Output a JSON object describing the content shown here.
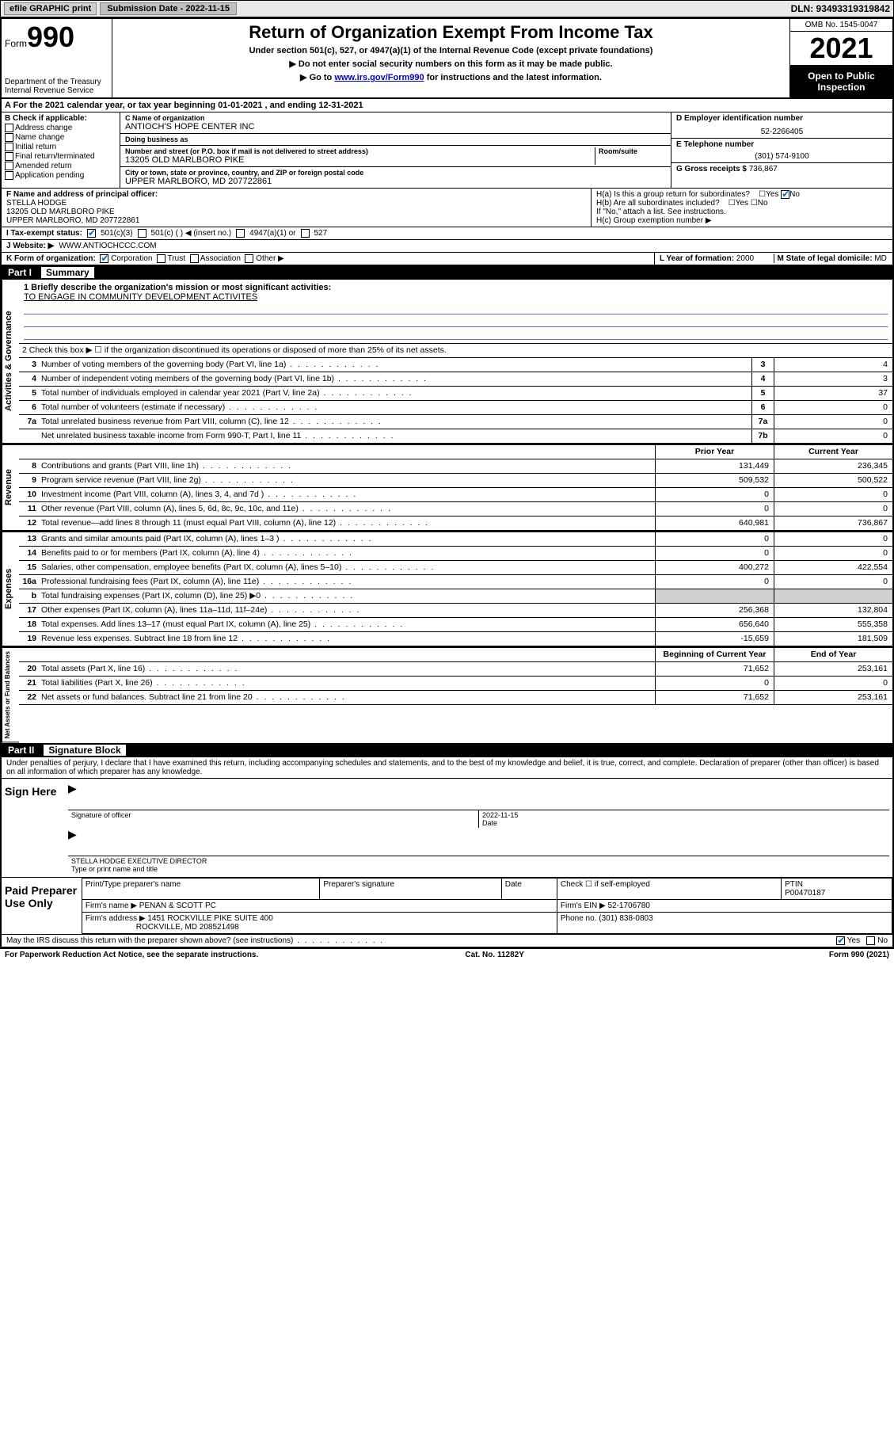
{
  "topbar": {
    "efile": "efile GRAPHIC print",
    "subdate_label": "Submission Date - 2022-11-15",
    "dln": "DLN: 93493319319842"
  },
  "header": {
    "form_label": "Form",
    "form_no": "990",
    "dept": "Department of the Treasury Internal Revenue Service",
    "title": "Return of Organization Exempt From Income Tax",
    "sub1": "Under section 501(c), 527, or 4947(a)(1) of the Internal Revenue Code (except private foundations)",
    "sub2": "▶ Do not enter social security numbers on this form as it may be made public.",
    "sub3_pre": "▶ Go to ",
    "sub3_link": "www.irs.gov/Form990",
    "sub3_post": " for instructions and the latest information.",
    "omb": "OMB No. 1545-0047",
    "year": "2021",
    "open": "Open to Public Inspection"
  },
  "row_a": "A For the 2021 calendar year, or tax year beginning 01-01-2021    , and ending 12-31-2021",
  "box_b": {
    "label": "B Check if applicable:",
    "items": [
      "Address change",
      "Name change",
      "Initial return",
      "Final return/terminated",
      "Amended return",
      "Application pending"
    ]
  },
  "box_c": {
    "name_lbl": "C Name of organization",
    "name": "ANTIOCH'S HOPE CENTER INC",
    "dba_lbl": "Doing business as",
    "dba": "",
    "addr_lbl": "Number and street (or P.O. box if mail is not delivered to street address)",
    "room_lbl": "Room/suite",
    "addr": "13205 OLD MARLBORO PIKE",
    "city_lbl": "City or town, state or province, country, and ZIP or foreign postal code",
    "city": "UPPER MARLBORO, MD  207722861"
  },
  "box_d": {
    "ein_lbl": "D Employer identification number",
    "ein": "52-2266405",
    "tel_lbl": "E Telephone number",
    "tel": "(301) 574-9100",
    "gross_lbl": "G Gross receipts $",
    "gross": "736,867"
  },
  "box_f": {
    "lbl": "F Name and address of principal officer:",
    "name": "STELLA HODGE",
    "addr1": "13205 OLD MARLBORO PIKE",
    "addr2": "UPPER MARLBORO, MD  207722861"
  },
  "box_h": {
    "a": "H(a)  Is this a group return for subordinates?",
    "b": "H(b)  Are all subordinates included?",
    "note": "If \"No,\" attach a list. See instructions.",
    "c": "H(c)  Group exemption number ▶"
  },
  "row_i": {
    "lbl": "I   Tax-exempt status:",
    "c3": "501(c)(3)",
    "c": "501(c) (     ) ◀ (insert no.)",
    "a1": "4947(a)(1) or",
    "s527": "527"
  },
  "row_j": {
    "lbl": "J   Website: ▶",
    "val": "WWW.ANTIOCHCCC.COM"
  },
  "row_k": {
    "lbl": "K Form of organization:",
    "corp": "Corporation",
    "trust": "Trust",
    "assoc": "Association",
    "other": "Other ▶"
  },
  "row_lm": {
    "l_lbl": "L Year of formation:",
    "l_val": "2000",
    "m_lbl": "M State of legal domicile:",
    "m_val": "MD"
  },
  "part1": {
    "num": "Part I",
    "title": "Summary"
  },
  "mission": {
    "q": "1   Briefly describe the organization's mission or most significant activities:",
    "a": "TO ENGAGE IN COMMUNITY DEVELOPMENT ACTIVITES"
  },
  "line2": "2   Check this box ▶ ☐  if the organization discontinued its operations or disposed of more than 25% of its net assets.",
  "gov_rows": [
    {
      "n": "3",
      "d": "Number of voting members of the governing body (Part VI, line 1a)",
      "box": "3",
      "v": "4"
    },
    {
      "n": "4",
      "d": "Number of independent voting members of the governing body (Part VI, line 1b)",
      "box": "4",
      "v": "3"
    },
    {
      "n": "5",
      "d": "Total number of individuals employed in calendar year 2021 (Part V, line 2a)",
      "box": "5",
      "v": "37"
    },
    {
      "n": "6",
      "d": "Total number of volunteers (estimate if necessary)",
      "box": "6",
      "v": "0"
    },
    {
      "n": "7a",
      "d": "Total unrelated business revenue from Part VIII, column (C), line 12",
      "box": "7a",
      "v": "0"
    },
    {
      "n": "",
      "d": "Net unrelated business taxable income from Form 990-T, Part I, line 11",
      "box": "7b",
      "v": "0"
    }
  ],
  "col_hdrs": {
    "prior": "Prior Year",
    "current": "Current Year",
    "boy": "Beginning of Current Year",
    "eoy": "End of Year"
  },
  "rev_rows": [
    {
      "n": "8",
      "d": "Contributions and grants (Part VIII, line 1h)",
      "p": "131,449",
      "c": "236,345"
    },
    {
      "n": "9",
      "d": "Program service revenue (Part VIII, line 2g)",
      "p": "509,532",
      "c": "500,522"
    },
    {
      "n": "10",
      "d": "Investment income (Part VIII, column (A), lines 3, 4, and 7d )",
      "p": "0",
      "c": "0"
    },
    {
      "n": "11",
      "d": "Other revenue (Part VIII, column (A), lines 5, 6d, 8c, 9c, 10c, and 11e)",
      "p": "0",
      "c": "0"
    },
    {
      "n": "12",
      "d": "Total revenue—add lines 8 through 11 (must equal Part VIII, column (A), line 12)",
      "p": "640,981",
      "c": "736,867"
    }
  ],
  "exp_rows": [
    {
      "n": "13",
      "d": "Grants and similar amounts paid (Part IX, column (A), lines 1–3 )",
      "p": "0",
      "c": "0"
    },
    {
      "n": "14",
      "d": "Benefits paid to or for members (Part IX, column (A), line 4)",
      "p": "0",
      "c": "0"
    },
    {
      "n": "15",
      "d": "Salaries, other compensation, employee benefits (Part IX, column (A), lines 5–10)",
      "p": "400,272",
      "c": "422,554"
    },
    {
      "n": "16a",
      "d": "Professional fundraising fees (Part IX, column (A), line 11e)",
      "p": "0",
      "c": "0"
    },
    {
      "n": "b",
      "d": "Total fundraising expenses (Part IX, column (D), line 25) ▶0",
      "p": "",
      "c": "",
      "shade": true
    },
    {
      "n": "17",
      "d": "Other expenses (Part IX, column (A), lines 11a–11d, 11f–24e)",
      "p": "256,368",
      "c": "132,804"
    },
    {
      "n": "18",
      "d": "Total expenses. Add lines 13–17 (must equal Part IX, column (A), line 25)",
      "p": "656,640",
      "c": "555,358"
    },
    {
      "n": "19",
      "d": "Revenue less expenses. Subtract line 18 from line 12",
      "p": "-15,659",
      "c": "181,509"
    }
  ],
  "na_rows": [
    {
      "n": "20",
      "d": "Total assets (Part X, line 16)",
      "p": "71,652",
      "c": "253,161"
    },
    {
      "n": "21",
      "d": "Total liabilities (Part X, line 26)",
      "p": "0",
      "c": "0"
    },
    {
      "n": "22",
      "d": "Net assets or fund balances. Subtract line 21 from line 20",
      "p": "71,652",
      "c": "253,161"
    }
  ],
  "part2": {
    "num": "Part II",
    "title": "Signature Block"
  },
  "penalties": "Under penalties of perjury, I declare that I have examined this return, including accompanying schedules and statements, and to the best of my knowledge and belief, it is true, correct, and complete. Declaration of preparer (other than officer) is based on all information of which preparer has any knowledge.",
  "sign": {
    "here": "Sign Here",
    "sig_lbl": "Signature of officer",
    "date_lbl": "Date",
    "date": "2022-11-15",
    "name": "STELLA HODGE  EXECUTIVE DIRECTOR",
    "name_lbl": "Type or print name and title"
  },
  "prep": {
    "title": "Paid Preparer Use Only",
    "h1": "Print/Type preparer's name",
    "h2": "Preparer's signature",
    "h3": "Date",
    "h4_pre": "Check ☐ if self-employed",
    "h5": "PTIN",
    "ptin": "P00470187",
    "firm_lbl": "Firm's name    ▶",
    "firm": "PENAN & SCOTT PC",
    "fein_lbl": "Firm's EIN ▶",
    "fein": "52-1706780",
    "addr_lbl": "Firm's address ▶",
    "addr1": "1451 ROCKVILLE PIKE SUITE 400",
    "addr2": "ROCKVILLE, MD  208521498",
    "phone_lbl": "Phone no.",
    "phone": "(301) 838-0803"
  },
  "discuss": "May the IRS discuss this return with the preparer shown above? (see instructions)",
  "footer": {
    "l": "For Paperwork Reduction Act Notice, see the separate instructions.",
    "c": "Cat. No. 11282Y",
    "r": "Form 990 (2021)"
  },
  "vtabs": {
    "gov": "Activities & Governance",
    "rev": "Revenue",
    "exp": "Expenses",
    "na": "Net Assets or Fund Balances"
  }
}
